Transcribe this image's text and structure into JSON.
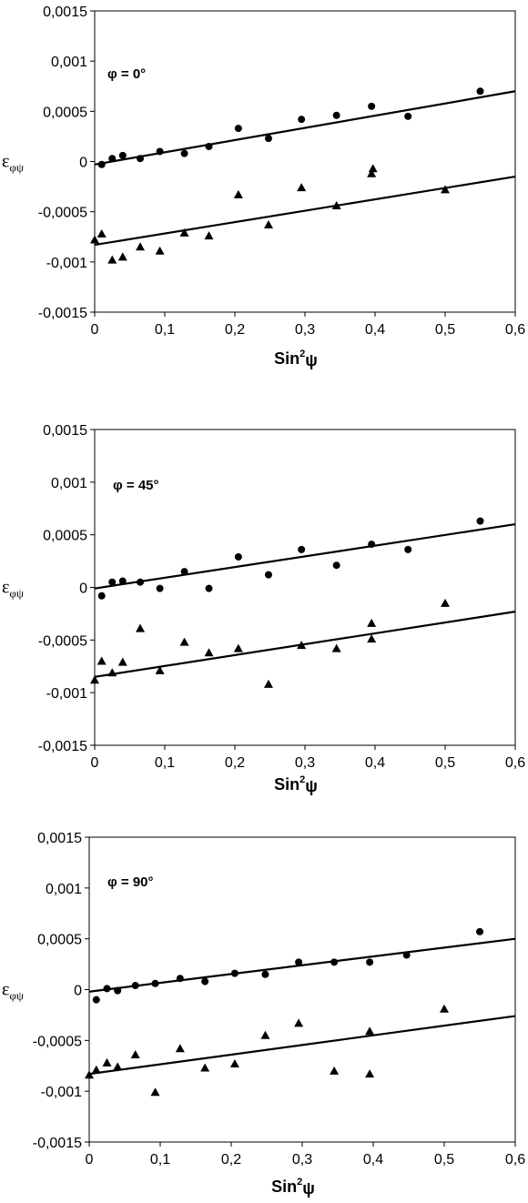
{
  "chart_data": [
    {
      "type": "scatter",
      "annotation": "φ = 0°",
      "xlabel": "Sin²ψ",
      "ylabel": "εφψ",
      "xlim": [
        0,
        0.6
      ],
      "ylim": [
        -0.0015,
        0.0015
      ],
      "x_ticks": [
        "0",
        "0,1",
        "0,2",
        "0,3",
        "0,4",
        "0,5",
        "0,6"
      ],
      "y_ticks": [
        "0,0015",
        "0,001",
        "0,0005",
        "0",
        "-0,0005",
        "-0,001",
        "-0,0015"
      ],
      "grid": false,
      "series": [
        {
          "marker": "circle",
          "x": [
            0.01,
            0.025,
            0.04,
            0.065,
            0.093,
            0.128,
            0.163,
            0.205,
            0.248,
            0.295,
            0.345,
            0.395,
            0.447,
            0.55
          ],
          "y": [
            -3e-05,
            3e-05,
            6e-05,
            3e-05,
            0.0001,
            8e-05,
            0.00015,
            0.00033,
            0.00023,
            0.00042,
            0.00046,
            0.00055,
            0.00045,
            0.0007
          ],
          "fit": [
            [
              0,
              -3e-05
            ],
            [
              0.6,
              0.0007
            ]
          ]
        },
        {
          "marker": "triangle",
          "x": [
            0,
            0.01,
            0.025,
            0.04,
            0.065,
            0.093,
            0.128,
            0.163,
            0.205,
            0.248,
            0.295,
            0.345,
            0.395,
            0.397,
            0.5
          ],
          "y": [
            -0.00078,
            -0.00072,
            -0.00098,
            -0.00095,
            -0.00085,
            -0.00089,
            -0.00071,
            -0.00074,
            -0.00033,
            -0.00063,
            -0.00026,
            -0.00044,
            -0.00012,
            -7e-05,
            -0.00028
          ],
          "fit": [
            [
              0,
              -0.00083
            ],
            [
              0.6,
              -0.00015
            ]
          ]
        }
      ]
    },
    {
      "type": "scatter",
      "annotation": "φ = 45°",
      "xlabel": "Sin²ψ",
      "ylabel": "εφψ",
      "xlim": [
        0,
        0.6
      ],
      "ylim": [
        -0.0015,
        0.0015
      ],
      "x_ticks": [
        "0",
        "0,1",
        "0,2",
        "0,3",
        "0,4",
        "0,5",
        "0,6"
      ],
      "y_ticks": [
        "0,0015",
        "0,001",
        "0,0005",
        "0",
        "-0,0005",
        "-0,001",
        "-0,0015"
      ],
      "grid": false,
      "series": [
        {
          "marker": "circle",
          "x": [
            0.01,
            0.025,
            0.04,
            0.065,
            0.093,
            0.128,
            0.163,
            0.205,
            0.248,
            0.295,
            0.345,
            0.395,
            0.447,
            0.55
          ],
          "y": [
            -8e-05,
            5e-05,
            6e-05,
            5e-05,
            -1e-05,
            0.00015,
            -1e-05,
            0.00029,
            0.00012,
            0.00036,
            0.00021,
            0.00041,
            0.00036,
            0.00063
          ],
          "fit": [
            [
              0,
              -1e-05
            ],
            [
              0.6,
              0.0006
            ]
          ]
        },
        {
          "marker": "triangle",
          "x": [
            0,
            0.01,
            0.025,
            0.04,
            0.065,
            0.093,
            0.128,
            0.163,
            0.205,
            0.248,
            0.295,
            0.345,
            0.395,
            0.395,
            0.5
          ],
          "y": [
            -0.00088,
            -0.0007,
            -0.00081,
            -0.00071,
            -0.00039,
            -0.00079,
            -0.00052,
            -0.00062,
            -0.00058,
            -0.00092,
            -0.00055,
            -0.00058,
            -0.00034,
            -0.00049,
            -0.00015
          ],
          "fit": [
            [
              0,
              -0.00085
            ],
            [
              0.6,
              -0.00023
            ]
          ]
        }
      ]
    },
    {
      "type": "scatter",
      "annotation": "φ = 90°",
      "xlabel": "Sin²ψ",
      "ylabel": "εφψ",
      "xlim": [
        0,
        0.6
      ],
      "ylim": [
        -0.0015,
        0.0015
      ],
      "x_ticks": [
        "0",
        "0,1",
        "0,2",
        "0,3",
        "0,4",
        "0,5",
        "0,6"
      ],
      "y_ticks": [
        "0,0015",
        "0,001",
        "0,0005",
        "0",
        "-0,0005",
        "-0,001",
        "-0,0015"
      ],
      "grid": false,
      "series": [
        {
          "marker": "circle",
          "x": [
            0.01,
            0.025,
            0.04,
            0.065,
            0.093,
            0.128,
            0.163,
            0.205,
            0.248,
            0.295,
            0.345,
            0.395,
            0.447,
            0.55
          ],
          "y": [
            -0.0001,
            1e-05,
            -1e-05,
            4e-05,
            6e-05,
            0.00011,
            8e-05,
            0.00016,
            0.00015,
            0.00027,
            0.00027,
            0.00027,
            0.00034,
            0.00057
          ],
          "fit": [
            [
              0,
              -2e-05
            ],
            [
              0.6,
              0.0005
            ]
          ]
        },
        {
          "marker": "triangle",
          "x": [
            0,
            0.01,
            0.025,
            0.04,
            0.065,
            0.093,
            0.128,
            0.163,
            0.205,
            0.248,
            0.295,
            0.345,
            0.395,
            0.395,
            0.5
          ],
          "y": [
            -0.00084,
            -0.00079,
            -0.00072,
            -0.00076,
            -0.00064,
            -0.00101,
            -0.00058,
            -0.00077,
            -0.00073,
            -0.00045,
            -0.00033,
            -0.0008,
            -0.00041,
            -0.00083,
            -0.00019
          ],
          "fit": [
            [
              0,
              -0.00083
            ],
            [
              0.6,
              -0.00026
            ]
          ]
        }
      ]
    }
  ]
}
